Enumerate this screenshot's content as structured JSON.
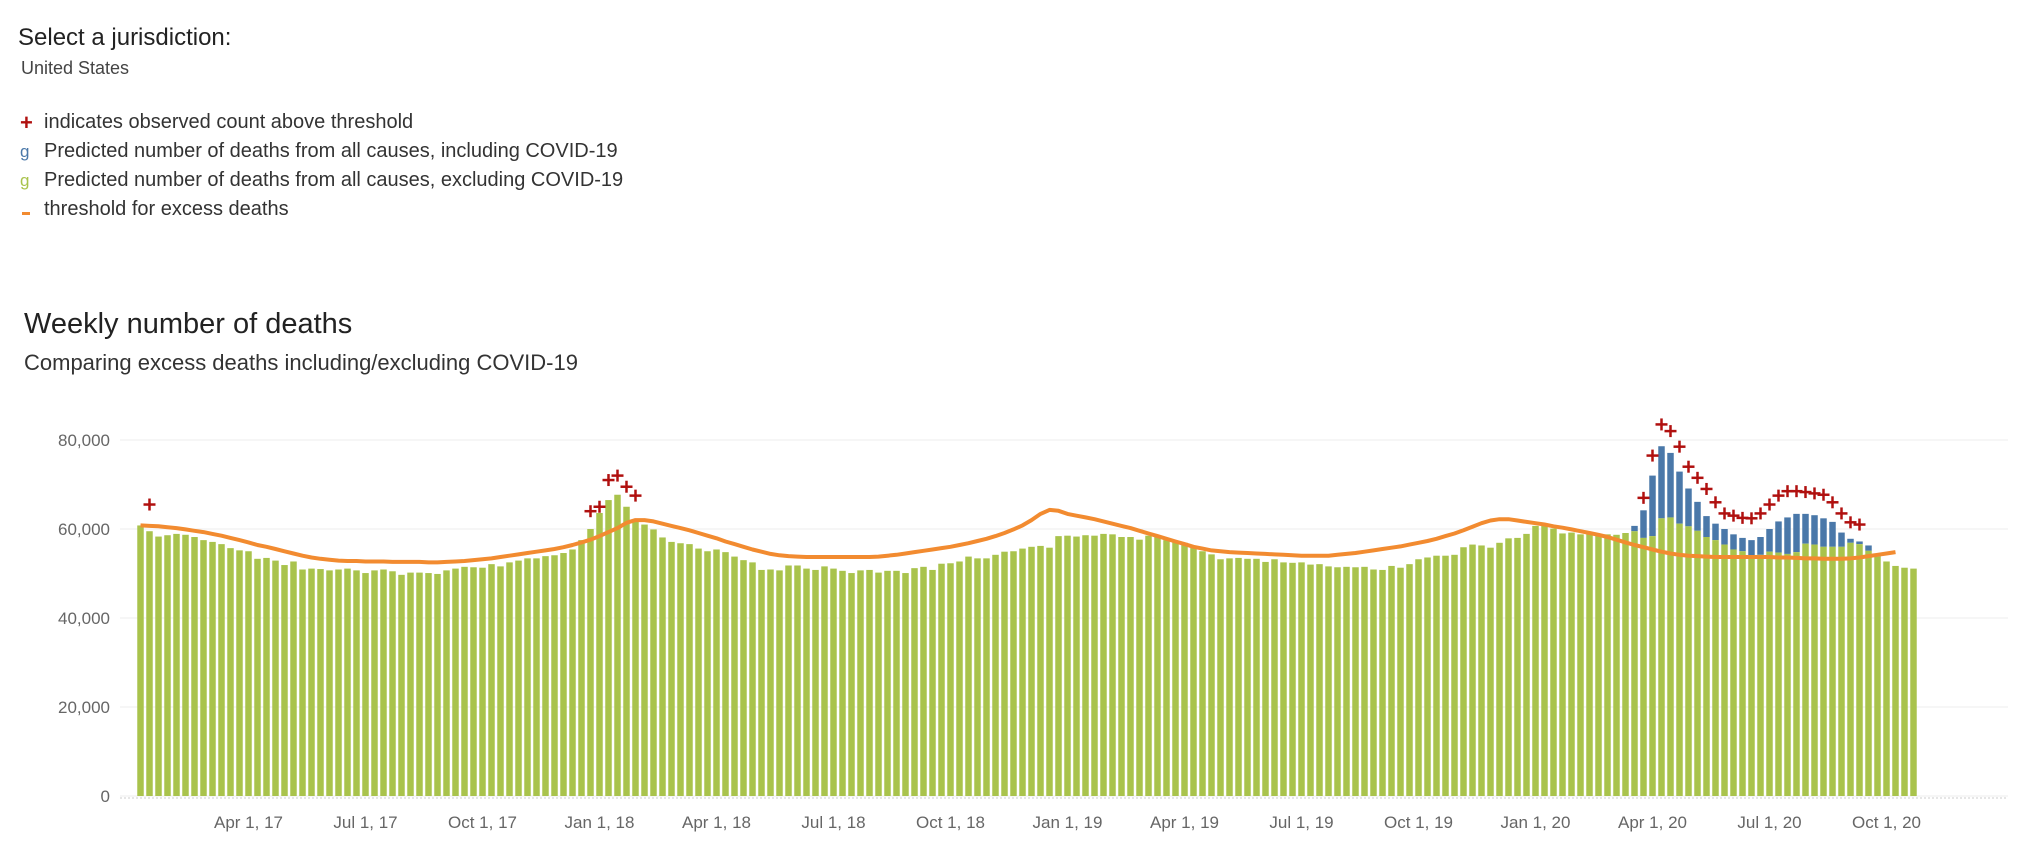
{
  "selector": {
    "label": "Select a jurisdiction:",
    "value": "United States"
  },
  "legend": [
    {
      "mark": "+",
      "text": "indicates observed count above threshold",
      "color": "#b0100f"
    },
    {
      "mark": "g",
      "text": "Predicted number of deaths from all causes, including COVID-19",
      "color": "#4a78a9"
    },
    {
      "mark": "g",
      "text": "Predicted number of deaths from all causes, excluding COVID-19",
      "color": "#a9c34c"
    },
    {
      "mark": "-",
      "text": "threshold for excess deaths",
      "color": "#f28b30"
    }
  ],
  "colors": {
    "excluding": "#a9c34c",
    "including": "#4a78a9",
    "threshold": "#f28b30",
    "above": "#b0100f",
    "grid": "#eeeeee"
  },
  "chart_data": {
    "type": "bar",
    "title": "Weekly number of deaths",
    "subtitle": "Comparing excess deaths including/excluding COVID-19",
    "ylim": [
      0,
      80000
    ],
    "yticks": [
      0,
      20000,
      40000,
      60000,
      80000
    ],
    "ytick_labels": [
      "0",
      "20,000",
      "40,000",
      "60,000",
      "80,000"
    ],
    "x_ticks": [
      {
        "label": "Apr 1, 17",
        "week": 12
      },
      {
        "label": "Jul 1, 17",
        "week": 25
      },
      {
        "label": "Oct 1, 17",
        "week": 38
      },
      {
        "label": "Jan 1, 18",
        "week": 51
      },
      {
        "label": "Apr 1, 18",
        "week": 64
      },
      {
        "label": "Jul 1, 18",
        "week": 77
      },
      {
        "label": "Oct 1, 18",
        "week": 90
      },
      {
        "label": "Jan 1, 19",
        "week": 103
      },
      {
        "label": "Apr 1, 19",
        "week": 116
      },
      {
        "label": "Jul 1, 19",
        "week": 129
      },
      {
        "label": "Oct 1, 19",
        "week": 142
      },
      {
        "label": "Jan 1, 20",
        "week": 155
      },
      {
        "label": "Apr 1, 20",
        "week": 168
      },
      {
        "label": "Jul 1, 20",
        "week": 181
      },
      {
        "label": "Oct 1, 20",
        "week": 194
      }
    ],
    "series": [
      {
        "key": "excluding",
        "values": [
          60800,
          59500,
          58300,
          58600,
          58900,
          58700,
          58200,
          57500,
          57100,
          56600,
          55700,
          55200,
          55000,
          53300,
          53500,
          52900,
          51900,
          52700,
          50900,
          51100,
          51000,
          50700,
          50900,
          51100,
          50700,
          50100,
          50700,
          50900,
          50500,
          49700,
          50200,
          50200,
          50100,
          49900,
          50700,
          51100,
          51500,
          51400,
          51300,
          52100,
          51600,
          52500,
          52900,
          53400,
          53400,
          53900,
          54100,
          54600,
          55400,
          57500,
          60000,
          63600,
          66500,
          67700,
          65000,
          62000,
          61000,
          59900,
          58100,
          57100,
          56800,
          56600,
          55600,
          55000,
          55400,
          54800,
          53800,
          53000,
          52500,
          50800,
          50900,
          50700,
          51800,
          51800,
          51100,
          50800,
          51600,
          51100,
          50600,
          50100,
          50700,
          50800,
          50200,
          50600,
          50600,
          50100,
          51200,
          51500,
          50800,
          52200,
          52300,
          52700,
          53800,
          53400,
          53400,
          54200,
          54900,
          55000,
          55600,
          56000,
          56200,
          55800,
          58400,
          58500,
          58300,
          58600,
          58500,
          58900,
          58800,
          58200,
          58200,
          57600,
          58500,
          58300,
          57500,
          57100,
          56900,
          56200,
          55000,
          54300,
          53200,
          53400,
          53500,
          53300,
          53300,
          52600,
          53200,
          52500,
          52400,
          52500,
          52000,
          52100,
          51600,
          51400,
          51500,
          51400,
          51500,
          50900,
          50800,
          51700,
          51300,
          52100,
          53200,
          53600,
          54000,
          54000,
          54200,
          55900,
          56500,
          56300,
          55800,
          56900,
          57900,
          58000,
          58900,
          60700,
          61000,
          60100,
          59000,
          59200,
          58800,
          59000,
          58600,
          58800,
          58700,
          59100,
          59500,
          58000,
          58400,
          62400,
          62600,
          61200,
          60600,
          59600,
          58200,
          57500,
          56500,
          55400,
          55000,
          53900,
          54200,
          54900,
          54700,
          54400,
          54800,
          56700,
          56500,
          56000,
          56000,
          56000,
          56900,
          56600,
          55100,
          53800,
          52700,
          51700,
          51300,
          51100
        ]
      },
      {
        "key": "including",
        "values": [
          60800,
          59500,
          58300,
          58600,
          58900,
          58700,
          58200,
          57500,
          57100,
          56600,
          55700,
          55200,
          55000,
          53300,
          53500,
          52900,
          51900,
          52700,
          50900,
          51100,
          51000,
          50700,
          50900,
          51100,
          50700,
          50100,
          50700,
          50900,
          50500,
          49700,
          50200,
          50200,
          50100,
          49900,
          50700,
          51100,
          51500,
          51400,
          51300,
          52100,
          51600,
          52500,
          52900,
          53400,
          53400,
          53900,
          54100,
          54600,
          55400,
          57500,
          60000,
          63600,
          66500,
          67700,
          65000,
          62000,
          61000,
          59900,
          58100,
          57100,
          56800,
          56600,
          55600,
          55000,
          55400,
          54800,
          53800,
          53000,
          52500,
          50800,
          50900,
          50700,
          51800,
          51800,
          51100,
          50800,
          51600,
          51100,
          50600,
          50100,
          50700,
          50800,
          50200,
          50600,
          50600,
          50100,
          51200,
          51500,
          50800,
          52200,
          52300,
          52700,
          53800,
          53400,
          53400,
          54200,
          54900,
          55000,
          55600,
          56000,
          56200,
          55800,
          58400,
          58500,
          58300,
          58600,
          58500,
          58900,
          58800,
          58200,
          58200,
          57600,
          58500,
          58300,
          57500,
          57100,
          56900,
          56200,
          55000,
          54300,
          53200,
          53400,
          53500,
          53300,
          53300,
          52600,
          53200,
          52500,
          52400,
          52500,
          52000,
          52100,
          51600,
          51400,
          51500,
          51400,
          51500,
          50900,
          50800,
          51700,
          51300,
          52100,
          53200,
          53600,
          54000,
          54000,
          54200,
          55900,
          56500,
          56300,
          55800,
          56900,
          57900,
          58000,
          58900,
          60700,
          61000,
          60100,
          59000,
          59200,
          58800,
          59000,
          58600,
          58800,
          58700,
          59100,
          60700,
          64200,
          72000,
          78600,
          77100,
          72900,
          69100,
          66100,
          62900,
          61200,
          60000,
          58800,
          58000,
          57500,
          58200,
          60000,
          61700,
          62600,
          63400,
          63400,
          63100,
          62400,
          61600,
          59200,
          57800,
          57200,
          56300,
          54300
        ]
      },
      {
        "key": "threshold",
        "values": [
          60800,
          60700,
          60600,
          60400,
          60200,
          59900,
          59600,
          59300,
          58900,
          58500,
          58000,
          57500,
          57000,
          56400,
          56000,
          55500,
          55000,
          54500,
          54000,
          53600,
          53300,
          53100,
          52900,
          52800,
          52800,
          52700,
          52700,
          52700,
          52600,
          52600,
          52600,
          52600,
          52500,
          52500,
          52600,
          52700,
          52800,
          53000,
          53200,
          53400,
          53700,
          54000,
          54300,
          54600,
          54900,
          55200,
          55500,
          55900,
          56400,
          57000,
          57600,
          58400,
          59300,
          60200,
          61400,
          62000,
          62000,
          61700,
          61200,
          60700,
          60200,
          59700,
          59100,
          58500,
          57900,
          57200,
          56600,
          56000,
          55400,
          54900,
          54400,
          54100,
          53900,
          53800,
          53700,
          53700,
          53700,
          53700,
          53700,
          53700,
          53700,
          53700,
          53800,
          54000,
          54200,
          54500,
          54800,
          55100,
          55400,
          55700,
          56000,
          56400,
          56800,
          57300,
          57800,
          58400,
          59100,
          59900,
          60800,
          62000,
          63400,
          64300,
          64100,
          63400,
          63000,
          62600,
          62200,
          61700,
          61200,
          60700,
          60200,
          59600,
          59000,
          58400,
          57800,
          57200,
          56600,
          56000,
          55600,
          55200,
          55000,
          54800,
          54700,
          54600,
          54500,
          54400,
          54300,
          54200,
          54100,
          54000,
          54000,
          54000,
          54000,
          54200,
          54400,
          54600,
          54900,
          55200,
          55500,
          55800,
          56100,
          56500,
          56900,
          57300,
          57800,
          58400,
          59000,
          59700,
          60500,
          61300,
          61900,
          62200,
          62200,
          61900,
          61600,
          61300,
          61000,
          60600,
          60300,
          59900,
          59500,
          59100,
          58700,
          58200,
          57600,
          57000,
          56400,
          55900,
          55400,
          54900,
          54500,
          54200,
          54000,
          53900,
          53800,
          53700,
          53700,
          53700,
          53700,
          53700,
          53700,
          53700,
          53600,
          53600,
          53500,
          53400,
          53400,
          53300,
          53300,
          53300,
          53400,
          53600,
          53900,
          54200,
          54500,
          54800
        ]
      },
      {
        "key": "above",
        "name": "indicates observed count above threshold",
        "points": [
          {
            "week": 1,
            "value": 65500
          },
          {
            "week": 50,
            "value": 64000
          },
          {
            "week": 51,
            "value": 65000
          },
          {
            "week": 52,
            "value": 71000
          },
          {
            "week": 53,
            "value": 72000
          },
          {
            "week": 54,
            "value": 69500
          },
          {
            "week": 55,
            "value": 67500
          },
          {
            "week": 167,
            "value": 67000
          },
          {
            "week": 168,
            "value": 76500
          },
          {
            "week": 169,
            "value": 83500
          },
          {
            "week": 170,
            "value": 82000
          },
          {
            "week": 171,
            "value": 78500
          },
          {
            "week": 172,
            "value": 74000
          },
          {
            "week": 173,
            "value": 71500
          },
          {
            "week": 174,
            "value": 69000
          },
          {
            "week": 175,
            "value": 66000
          },
          {
            "week": 176,
            "value": 63500
          },
          {
            "week": 177,
            "value": 63000
          },
          {
            "week": 178,
            "value": 62500
          },
          {
            "week": 179,
            "value": 62400
          },
          {
            "week": 180,
            "value": 63500
          },
          {
            "week": 181,
            "value": 65500
          },
          {
            "week": 182,
            "value": 67500
          },
          {
            "week": 183,
            "value": 68500
          },
          {
            "week": 184,
            "value": 68500
          },
          {
            "week": 185,
            "value": 68300
          },
          {
            "week": 186,
            "value": 68000
          },
          {
            "week": 187,
            "value": 67700
          },
          {
            "week": 188,
            "value": 66000
          },
          {
            "week": 189,
            "value": 63500
          },
          {
            "week": 190,
            "value": 61500
          },
          {
            "week": 191,
            "value": 61000
          }
        ]
      }
    ]
  }
}
